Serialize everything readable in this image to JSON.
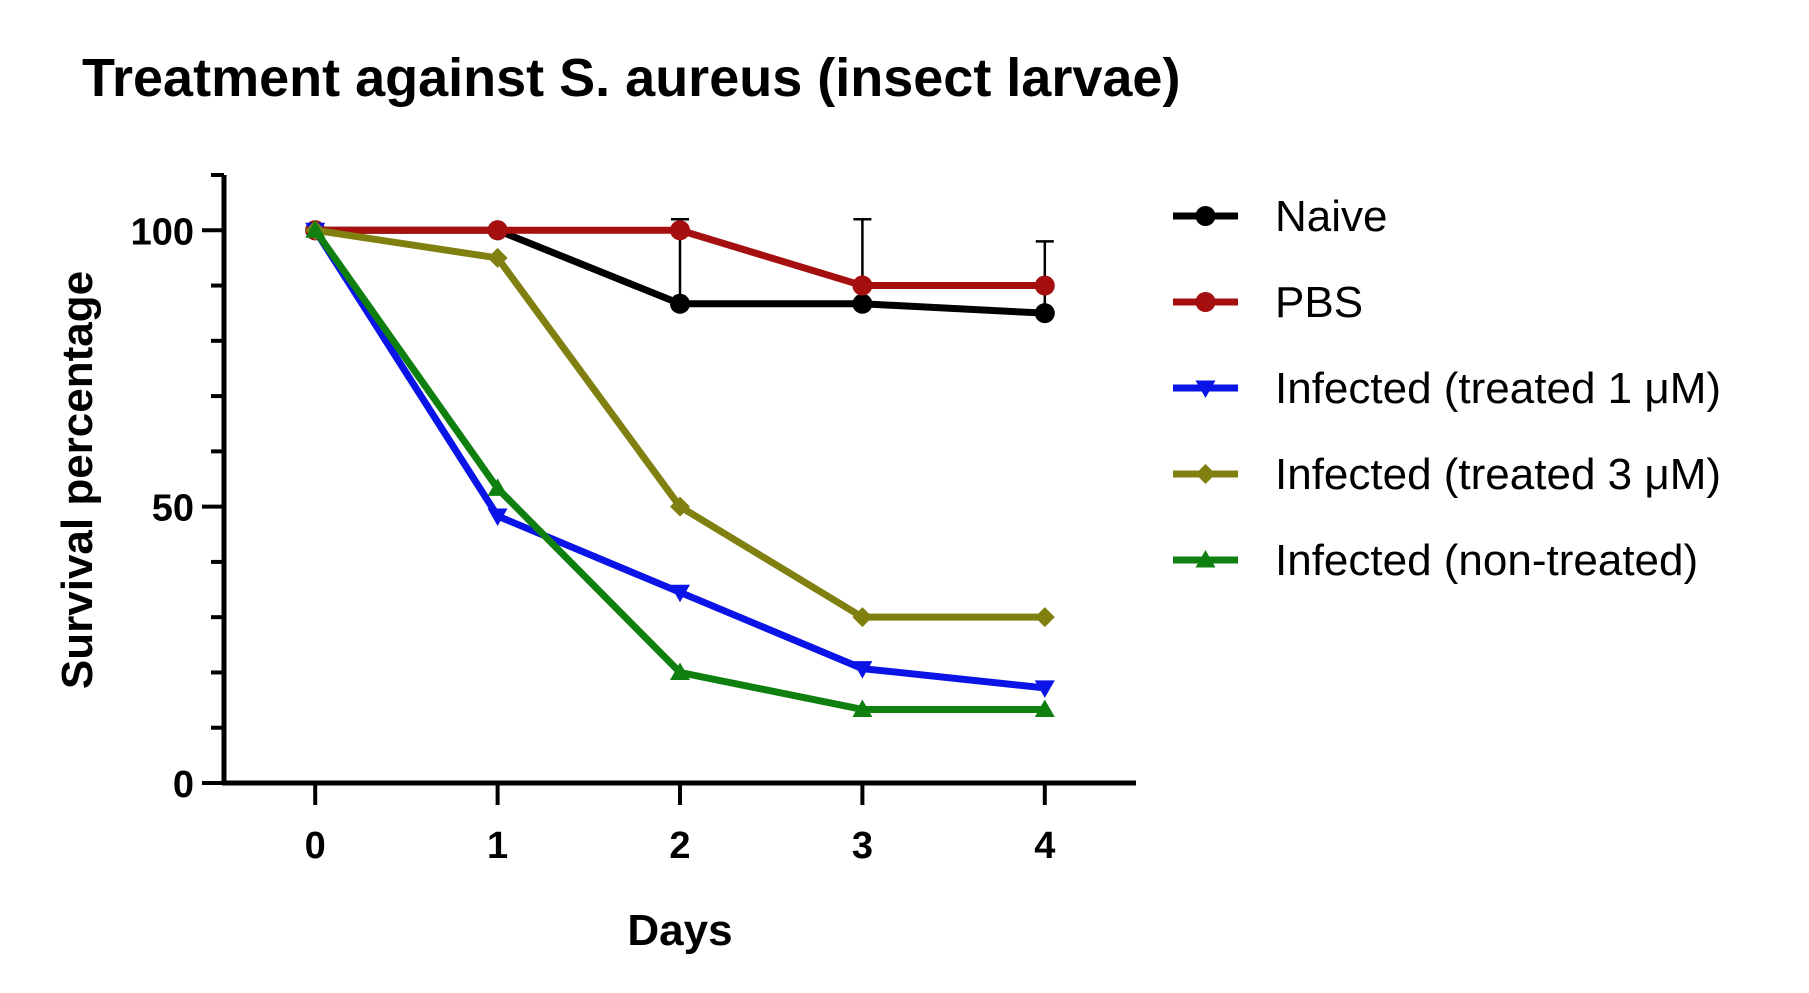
{
  "chart_data": {
    "type": "line",
    "title": "Treatment against S. aureus (insect larvae)",
    "xlabel": "Days",
    "ylabel": "Survival percentage",
    "x": [
      0,
      1,
      2,
      3,
      4
    ],
    "x_ticks": [
      "0",
      "1",
      "2",
      "3",
      "4"
    ],
    "y_ticks": [
      "0",
      "50",
      "100"
    ],
    "xlim": [
      -0.5,
      4.5
    ],
    "ylim": [
      0,
      110
    ],
    "grid": false,
    "legend_position": "right",
    "series": [
      {
        "name": "Naive",
        "values": [
          100,
          100,
          86.7,
          86.7,
          85
        ],
        "color": "#000000",
        "marker": "circle",
        "error_upper": [
          null,
          null,
          102,
          102,
          98
        ]
      },
      {
        "name": "PBS",
        "values": [
          100,
          100,
          100,
          90,
          90
        ],
        "color": "#a50f0f",
        "marker": "circle",
        "error_upper": [
          null,
          null,
          null,
          null,
          null
        ]
      },
      {
        "name": "Infected (treated 1 μM)",
        "values": [
          100,
          48.3,
          34.5,
          20.7,
          17.2
        ],
        "color": "#0a14e6",
        "marker": "triangle-down",
        "error_upper": [
          null,
          null,
          null,
          null,
          null
        ]
      },
      {
        "name": "Infected (treated 3 μM)",
        "values": [
          100,
          95,
          50,
          30,
          30
        ],
        "color": "#808010",
        "marker": "diamond",
        "error_upper": [
          null,
          null,
          null,
          null,
          null
        ]
      },
      {
        "name": "Infected (non-treated)",
        "values": [
          100,
          53.3,
          20,
          13.3,
          13.3
        ],
        "color": "#0f8010",
        "marker": "triangle-up",
        "error_upper": [
          null,
          null,
          null,
          null,
          null
        ]
      }
    ]
  }
}
